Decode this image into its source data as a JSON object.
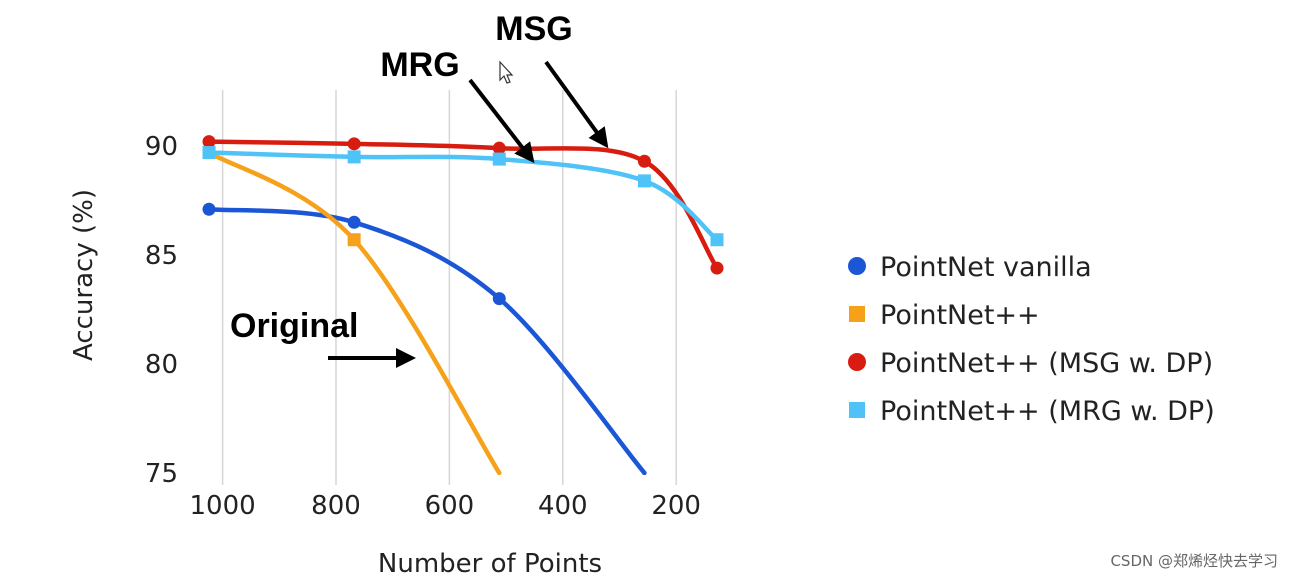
{
  "watermark": "CSDN @郑烯烃快去学习",
  "chart_data": {
    "type": "line",
    "xlabel": "Number of Points",
    "ylabel": "Accuracy (%)",
    "x_reversed": true,
    "xlim": [
      1100,
      100
    ],
    "ylim": [
      75,
      93
    ],
    "x_ticks": [
      1000,
      800,
      600,
      400,
      200
    ],
    "y_ticks": [
      75,
      80,
      85,
      90
    ],
    "grid": "vertical",
    "legend": "right",
    "series": [
      {
        "name": "PointNet vanilla",
        "color": "#1a56d6",
        "marker": "circle",
        "x": [
          1024,
          768,
          512,
          256
        ],
        "y": [
          87.1,
          86.5,
          83.0,
          75.0
        ]
      },
      {
        "name": "PointNet++",
        "color": "#f5a21a",
        "marker": "square",
        "x": [
          1024,
          768,
          512
        ],
        "y": [
          89.7,
          85.7,
          75.0
        ]
      },
      {
        "name": "PointNet++ (MSG w. DP)",
        "color": "#d81c10",
        "marker": "circle",
        "x": [
          1024,
          768,
          512,
          256,
          128
        ],
        "y": [
          90.2,
          90.1,
          89.9,
          89.3,
          84.4
        ]
      },
      {
        "name": "PointNet++ (MRG w. DP)",
        "color": "#4fc3f7",
        "marker": "square",
        "x": [
          1024,
          768,
          512,
          256,
          128
        ],
        "y": [
          89.7,
          89.5,
          89.4,
          88.4,
          85.7
        ]
      }
    ],
    "annotations": [
      {
        "text": "MSG"
      },
      {
        "text": "MRG"
      },
      {
        "text": "Original"
      }
    ]
  }
}
